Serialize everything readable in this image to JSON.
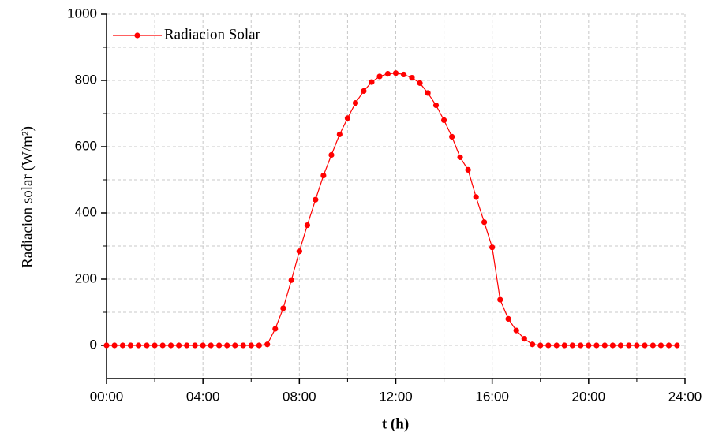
{
  "chart_data": {
    "type": "line",
    "xlabel": "t (h)",
    "ylabel": "Radiacion solar (W/m²)",
    "x": [
      0,
      0.33,
      0.67,
      1,
      1.33,
      1.67,
      2,
      2.33,
      2.67,
      3,
      3.33,
      3.67,
      4,
      4.33,
      4.67,
      5,
      5.33,
      5.67,
      6,
      6.33,
      6.67,
      7,
      7.33,
      7.67,
      8,
      8.33,
      8.67,
      9,
      9.33,
      9.67,
      10,
      10.33,
      10.67,
      11,
      11.33,
      11.67,
      12,
      12.33,
      12.67,
      13,
      13.33,
      13.67,
      14,
      14.33,
      14.67,
      15,
      15.33,
      15.67,
      16,
      16.33,
      16.67,
      17,
      17.33,
      17.67,
      18,
      18.33,
      18.67,
      19,
      19.33,
      19.67,
      20,
      20.33,
      20.67,
      21,
      21.33,
      21.67,
      22,
      22.33,
      22.67,
      23,
      23.33,
      23.67
    ],
    "series": [
      {
        "name": "Radiacion Solar",
        "color": "#ff0000",
        "values": [
          0,
          0,
          0,
          0,
          0,
          0,
          0,
          0,
          0,
          0,
          0,
          0,
          0,
          0,
          0,
          0,
          0,
          0,
          0,
          0,
          3,
          50,
          112,
          197,
          284,
          363,
          440,
          513,
          575,
          637,
          686,
          732,
          768,
          795,
          812,
          820,
          822,
          818,
          808,
          792,
          762,
          725,
          680,
          630,
          568,
          530,
          448,
          372,
          296,
          138,
          80,
          45,
          20,
          3,
          0,
          0,
          0,
          0,
          0,
          0,
          0,
          0,
          0,
          0,
          0,
          0,
          0,
          0,
          0,
          0,
          0,
          0
        ]
      }
    ],
    "xlim": [
      0,
      24
    ],
    "xticks": [
      {
        "value": 0,
        "label": "00:00"
      },
      {
        "value": 4,
        "label": "04:00"
      },
      {
        "value": 8,
        "label": "08:00"
      },
      {
        "value": 12,
        "label": "12:00"
      },
      {
        "value": 16,
        "label": "16:00"
      },
      {
        "value": 20,
        "label": "20:00"
      },
      {
        "value": 24,
        "label": "24:00"
      }
    ],
    "xminorticks": [
      2,
      6,
      10,
      14,
      18,
      22
    ],
    "ylim": [
      -100,
      1000
    ],
    "yticks": [
      0,
      200,
      400,
      600,
      800,
      1000
    ],
    "yminorticks": [
      100,
      300,
      500,
      700,
      900
    ],
    "grid": true,
    "legend": "upper left"
  }
}
